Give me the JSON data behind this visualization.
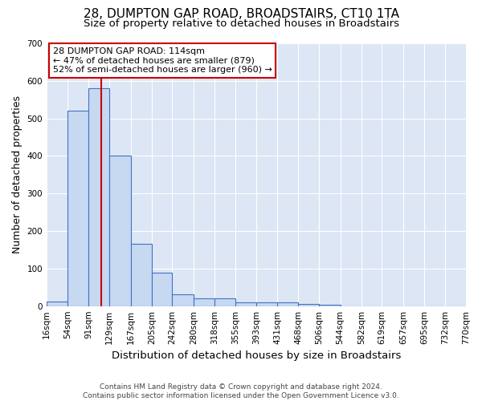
{
  "title": "28, DUMPTON GAP ROAD, BROADSTAIRS, CT10 1TA",
  "subtitle": "Size of property relative to detached houses in Broadstairs",
  "xlabel": "Distribution of detached houses by size in Broadstairs",
  "ylabel": "Number of detached properties",
  "bar_heights": [
    12,
    520,
    580,
    400,
    165,
    88,
    32,
    20,
    20,
    10,
    10,
    10,
    5,
    3,
    0,
    0,
    0,
    0,
    0,
    0
  ],
  "bin_edges": [
    16,
    54,
    91,
    129,
    167,
    205,
    242,
    280,
    318,
    355,
    393,
    431,
    468,
    506,
    544,
    582,
    619,
    657,
    695,
    732,
    770
  ],
  "bar_color": "#c6d9f1",
  "bar_edge_color": "#4472c4",
  "vline_x": 114,
  "vline_color": "#cc0000",
  "annotation_line1": "28 DUMPTON GAP ROAD: 114sqm",
  "annotation_line2": "← 47% of detached houses are smaller (879)",
  "annotation_line3": "52% of semi-detached houses are larger (960) →",
  "annotation_box_color": "#ffffff",
  "annotation_box_edge_color": "#cc0000",
  "ylim": [
    0,
    700
  ],
  "yticks": [
    0,
    100,
    200,
    300,
    400,
    500,
    600,
    700
  ],
  "background_color": "#dce6f5",
  "footer_line1": "Contains HM Land Registry data © Crown copyright and database right 2024.",
  "footer_line2": "Contains public sector information licensed under the Open Government Licence v3.0.",
  "title_fontsize": 11,
  "subtitle_fontsize": 9.5,
  "xlabel_fontsize": 9.5,
  "ylabel_fontsize": 9,
  "tick_fontsize": 7.5,
  "annotation_fontsize": 8,
  "footer_fontsize": 6.5
}
